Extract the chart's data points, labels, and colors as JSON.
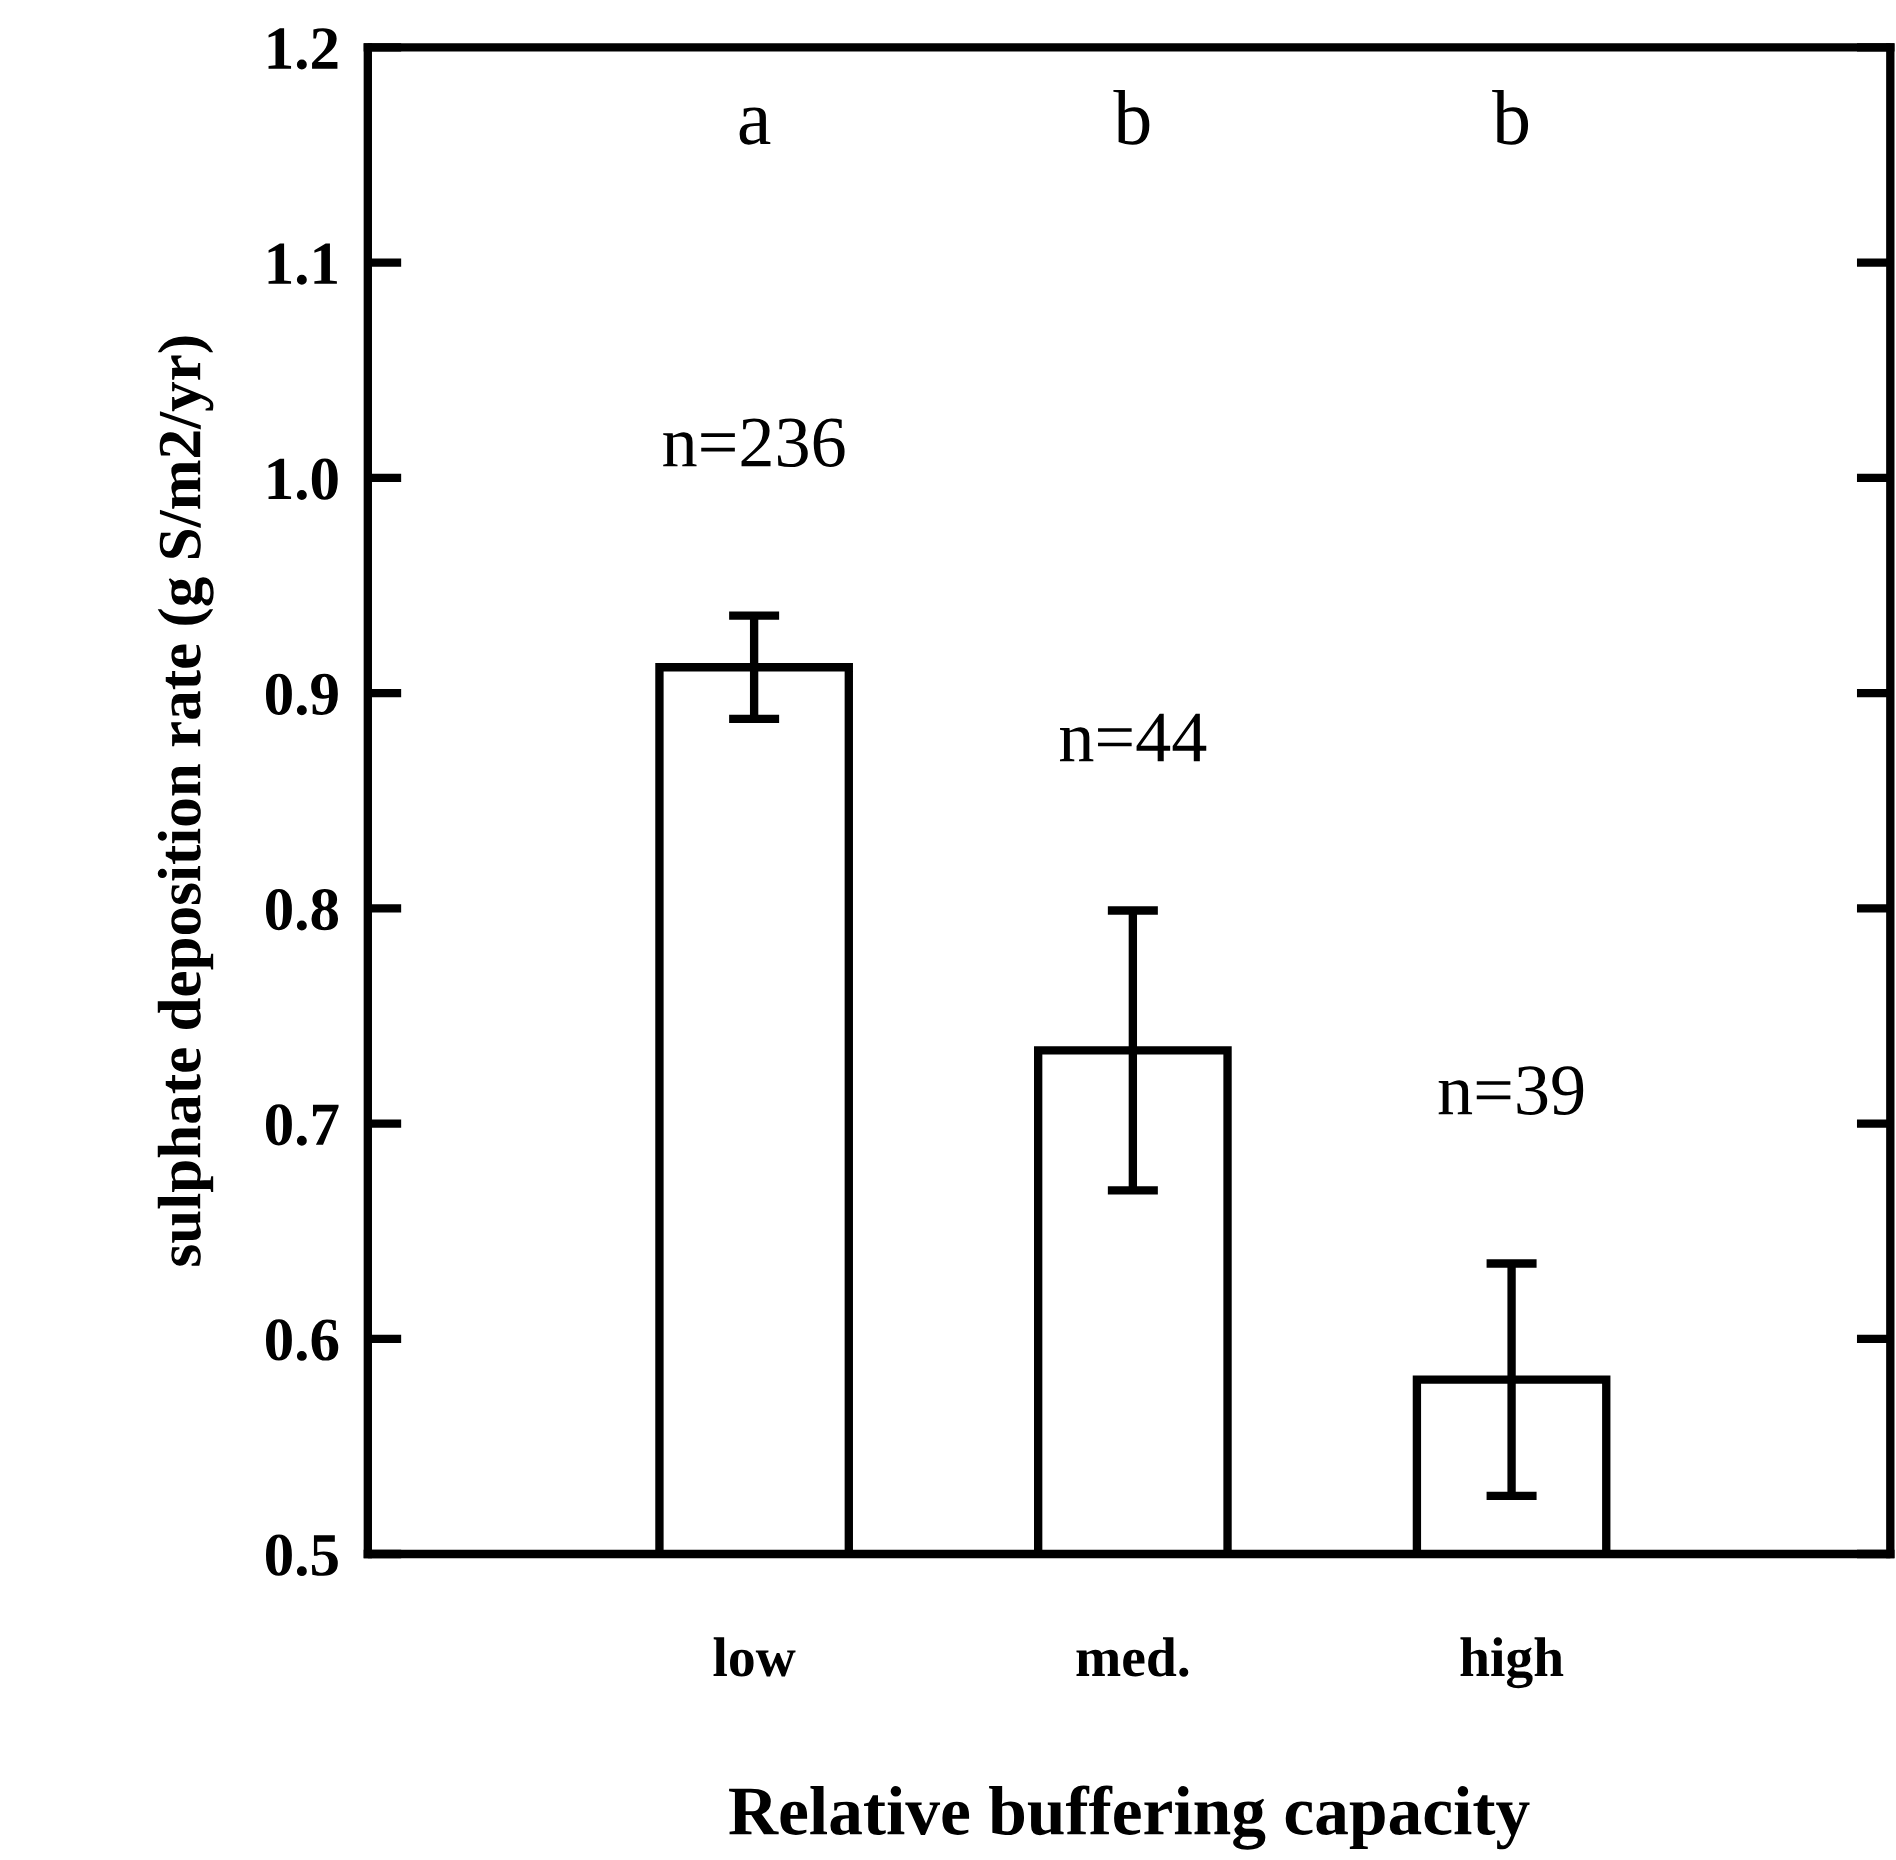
{
  "chart_data": {
    "type": "bar",
    "xlabel": "Relative buffering capacity",
    "ylabel": "sulphate deposition rate (g S/m2/yr)",
    "categories": [
      "low",
      "med.",
      "high"
    ],
    "series": [
      {
        "color": "#ffffff",
        "values": [
          0.912,
          0.734,
          0.581
        ],
        "errors": [
          0.024,
          0.065,
          0.054
        ]
      }
    ],
    "ylim": [
      0.5,
      1.2
    ],
    "yticks": [
      {
        "value": 0.5,
        "label": "0.5"
      },
      {
        "value": 0.6,
        "label": "0.6"
      },
      {
        "value": 0.7,
        "label": "0.7"
      },
      {
        "value": 0.8,
        "label": "0.8"
      },
      {
        "value": 0.9,
        "label": "0.9"
      },
      {
        "value": 1.0,
        "label": "1.0"
      },
      {
        "value": 1.1,
        "label": "1.1"
      },
      {
        "value": 1.2,
        "label": "1.2"
      }
    ],
    "grid": false,
    "legend": false,
    "annotations": [
      "a",
      "b",
      "b",
      "n=236",
      "n=44",
      "n=39"
    ]
  }
}
